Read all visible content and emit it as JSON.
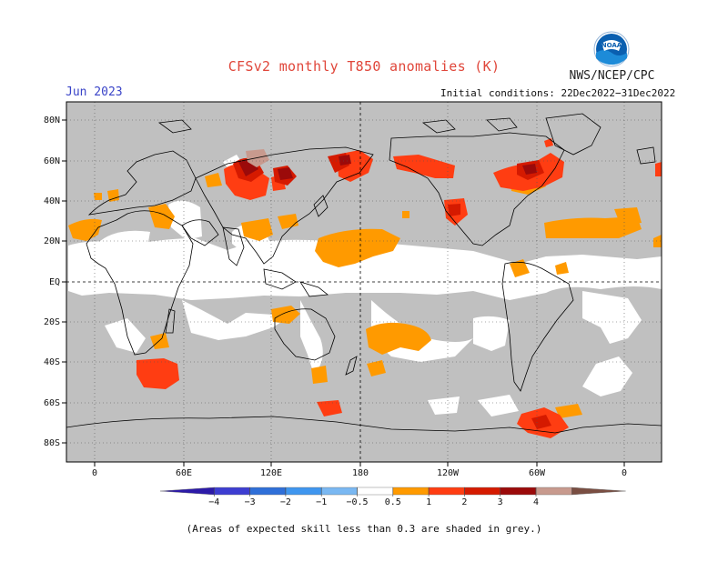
{
  "title": "CFSv2 monthly T850 anomalies (K)",
  "org": "NWS/NCEP/CPC",
  "logo_text": "NOAA",
  "month": "Jun 2023",
  "initial_conditions": "Initial conditions: 22Dec2022−31Dec2022",
  "note": "(Areas of expected skill less than 0.3 are shaded in grey.)",
  "lat_labels": [
    "80N",
    "60N",
    "40N",
    "20N",
    "EQ",
    "20S",
    "40S",
    "60S",
    "80S"
  ],
  "lon_labels": [
    "0",
    "60E",
    "120E",
    "180",
    "120W",
    "60W",
    "0"
  ],
  "colorbar": {
    "labels": [
      "−4",
      "−3",
      "−2",
      "−1",
      "−0.5",
      "0.5",
      "1",
      "2",
      "3",
      "4"
    ],
    "colors": [
      "#2c1aa8",
      "#3d3dd1",
      "#2f6fd8",
      "#3f96ef",
      "#7ab8f2",
      "#ffffff",
      "#ff9a00",
      "#ff3d12",
      "#d51a00",
      "#9b0a0a",
      "#c89a8e",
      "#7a4e42"
    ]
  },
  "colors": {
    "skill_grey": "#c0c0c0",
    "ocean_white": "#ffffff",
    "anom_0_5_1": "#ff9a00",
    "anom_1_2": "#ff3d12",
    "anom_2_3": "#d51a00",
    "anom_3_4": "#9b0a0a",
    "anom_4_plus": "#c89a8e"
  }
}
